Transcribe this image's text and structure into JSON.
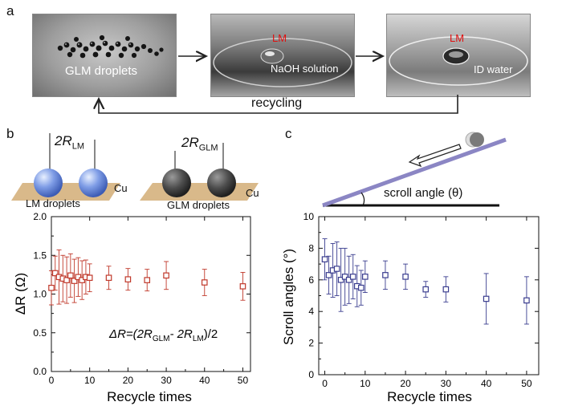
{
  "panel_a": {
    "letter": "a",
    "photos": [
      {
        "caption": "GLM droplets",
        "tag": ""
      },
      {
        "caption": "NaOH solution",
        "tag": "LM"
      },
      {
        "caption": "ID water",
        "tag": "LM"
      }
    ],
    "recycling_label": "recycling"
  },
  "panel_b": {
    "letter": "b",
    "schematic_left": {
      "label_main": "2R",
      "label_sub": "LM",
      "substrate": "Cu",
      "caption": "LM droplets"
    },
    "schematic_right": {
      "label_main": "2R",
      "label_sub": "GLM",
      "substrate": "Cu",
      "caption": "GLM droplets"
    },
    "formula": {
      "part1": "ΔR=(2R",
      "sub1": "GLM",
      "part2": "- 2R",
      "sub2": "LM",
      "part3": ")/2"
    }
  },
  "panel_c": {
    "letter": "c",
    "incline_label": "scroll angle (θ)"
  },
  "colors": {
    "red": "#c0392b",
    "blue": "#3a3d8f",
    "incline": "#8b86c4",
    "substrate": "#d9b98a"
  },
  "chart_data": [
    {
      "type": "scatter",
      "title": "",
      "xlabel": "Recycle times",
      "ylabel": "ΔR (Ω)",
      "xlim": [
        0,
        52
      ],
      "ylim": [
        0.0,
        2.0
      ],
      "xticks": [
        "0",
        "10",
        "20",
        "30",
        "40",
        "50"
      ],
      "yticks": [
        "0.0",
        "0.5",
        "1.0",
        "1.5",
        "2.0"
      ],
      "marker": "open-square",
      "color": "#c0392b",
      "x": [
        0,
        1,
        2,
        3,
        4,
        5,
        6,
        7,
        8,
        9,
        10,
        15,
        20,
        25,
        30,
        40,
        50
      ],
      "y": [
        1.08,
        1.27,
        1.22,
        1.2,
        1.18,
        1.24,
        1.17,
        1.22,
        1.18,
        1.22,
        1.21,
        1.21,
        1.19,
        1.18,
        1.24,
        1.15,
        1.1
      ],
      "yerr": [
        0.22,
        0.22,
        0.35,
        0.3,
        0.3,
        0.28,
        0.28,
        0.25,
        0.25,
        0.22,
        0.18,
        0.15,
        0.14,
        0.14,
        0.18,
        0.17,
        0.18
      ]
    },
    {
      "type": "scatter",
      "title": "",
      "xlabel": "Recycle times",
      "ylabel": "Scroll angles (°)",
      "xlim": [
        -1.5,
        53
      ],
      "ylim": [
        0,
        10
      ],
      "xticks": [
        "0",
        "10",
        "20",
        "30",
        "40",
        "50"
      ],
      "yticks": [
        "0",
        "2",
        "4",
        "6",
        "8",
        "10"
      ],
      "marker": "open-square",
      "color": "#3a3d8f",
      "x": [
        0,
        1,
        2,
        3,
        4,
        5,
        6,
        7,
        8,
        9,
        10,
        15,
        20,
        25,
        30,
        40,
        50
      ],
      "y": [
        7.3,
        6.3,
        6.6,
        6.7,
        6.0,
        6.2,
        6.0,
        6.2,
        5.6,
        5.5,
        6.2,
        6.3,
        6.2,
        5.4,
        5.4,
        4.8,
        4.7
      ],
      "yerr": [
        1.3,
        1.2,
        1.7,
        1.7,
        2.0,
        1.8,
        1.5,
        1.4,
        1.3,
        1.1,
        1.0,
        0.9,
        0.8,
        0.5,
        0.8,
        1.6,
        1.5
      ]
    }
  ]
}
